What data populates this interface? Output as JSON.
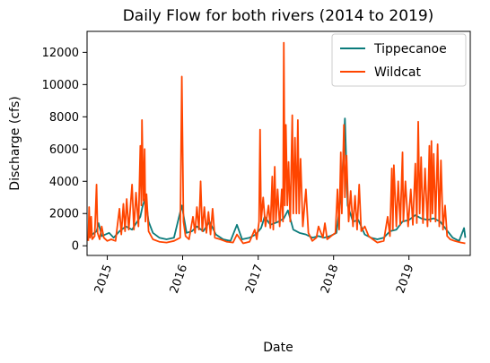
{
  "chart_data": {
    "type": "line",
    "title": "Daily Flow for both rivers (2014 to 2019)",
    "xlabel": "Date",
    "ylabel": "Discharge (cfs)",
    "xlim": [
      "2014-09-25",
      "2019-10-25"
    ],
    "ylim": [
      -600,
      13300
    ],
    "x_ticks": [
      "2015",
      "2016",
      "2017",
      "2018",
      "2019"
    ],
    "y_ticks": [
      0,
      2000,
      4000,
      6000,
      8000,
      10000,
      12000
    ],
    "grid": false,
    "legend": "top-right",
    "series": [
      {
        "name": "Tippecanoe",
        "color": "#0b7b7b",
        "points": [
          [
            "2014-10-01",
            500
          ],
          [
            "2014-10-20",
            700
          ],
          [
            "2014-11-10",
            900
          ],
          [
            "2014-11-20",
            1400
          ],
          [
            "2014-12-05",
            600
          ],
          [
            "2015-01-10",
            800
          ],
          [
            "2015-02-01",
            500
          ],
          [
            "2015-03-01",
            900
          ],
          [
            "2015-04-01",
            1200
          ],
          [
            "2015-05-01",
            1000
          ],
          [
            "2015-06-10",
            1800
          ],
          [
            "2015-06-20",
            2400
          ],
          [
            "2015-07-05",
            3000
          ],
          [
            "2015-07-20",
            1500
          ],
          [
            "2015-08-10",
            800
          ],
          [
            "2015-09-10",
            500
          ],
          [
            "2015-10-15",
            400
          ],
          [
            "2015-11-20",
            500
          ],
          [
            "2015-12-28",
            2500
          ],
          [
            "2016-01-20",
            800
          ],
          [
            "2016-02-15",
            900
          ],
          [
            "2016-03-10",
            1200
          ],
          [
            "2016-04-10",
            900
          ],
          [
            "2016-05-10",
            1500
          ],
          [
            "2016-06-10",
            700
          ],
          [
            "2016-07-15",
            400
          ],
          [
            "2016-08-20",
            300
          ],
          [
            "2016-09-20",
            1300
          ],
          [
            "2016-10-15",
            400
          ],
          [
            "2016-11-20",
            500
          ],
          [
            "2016-12-20",
            700
          ],
          [
            "2017-01-15",
            1100
          ],
          [
            "2017-02-01",
            1800
          ],
          [
            "2017-03-01",
            1300
          ],
          [
            "2017-04-10",
            1500
          ],
          [
            "2017-05-05",
            1700
          ],
          [
            "2017-05-25",
            2200
          ],
          [
            "2017-06-20",
            1000
          ],
          [
            "2017-07-20",
            800
          ],
          [
            "2017-08-20",
            700
          ],
          [
            "2017-09-20",
            500
          ],
          [
            "2017-10-20",
            600
          ],
          [
            "2017-11-15",
            500
          ],
          [
            "2017-12-15",
            600
          ],
          [
            "2018-01-15",
            800
          ],
          [
            "2018-02-10",
            3500
          ],
          [
            "2018-02-25",
            7900
          ],
          [
            "2018-03-10",
            2500
          ],
          [
            "2018-04-05",
            1500
          ],
          [
            "2018-05-01",
            1600
          ],
          [
            "2018-06-01",
            700
          ],
          [
            "2018-07-01",
            500
          ],
          [
            "2018-08-01",
            400
          ],
          [
            "2018-09-01",
            500
          ],
          [
            "2018-10-01",
            900
          ],
          [
            "2018-11-01",
            1000
          ],
          [
            "2018-12-01",
            1500
          ],
          [
            "2019-01-01",
            1600
          ],
          [
            "2019-02-01",
            1900
          ],
          [
            "2019-03-01",
            1700
          ],
          [
            "2019-04-01",
            1600
          ],
          [
            "2019-05-01",
            1700
          ],
          [
            "2019-06-01",
            1500
          ],
          [
            "2019-07-01",
            1000
          ],
          [
            "2019-08-01",
            500
          ],
          [
            "2019-09-01",
            300
          ],
          [
            "2019-09-25",
            1100
          ],
          [
            "2019-10-01",
            500
          ]
        ]
      },
      {
        "name": "Wildcat",
        "color": "#ff4500",
        "points": [
          [
            "2014-10-01",
            300
          ],
          [
            "2014-10-05",
            2400
          ],
          [
            "2014-10-10",
            500
          ],
          [
            "2014-10-15",
            1800
          ],
          [
            "2014-10-20",
            400
          ],
          [
            "2014-11-01",
            600
          ],
          [
            "2014-11-10",
            3800
          ],
          [
            "2014-11-15",
            800
          ],
          [
            "2014-11-25",
            400
          ],
          [
            "2014-12-05",
            1200
          ],
          [
            "2014-12-15",
            500
          ],
          [
            "2015-01-01",
            300
          ],
          [
            "2015-01-20",
            400
          ],
          [
            "2015-02-10",
            300
          ],
          [
            "2015-03-01",
            2300
          ],
          [
            "2015-03-10",
            700
          ],
          [
            "2015-03-20",
            2600
          ],
          [
            "2015-03-28",
            900
          ],
          [
            "2015-04-05",
            2900
          ],
          [
            "2015-04-15",
            1000
          ],
          [
            "2015-05-01",
            3800
          ],
          [
            "2015-05-10",
            1000
          ],
          [
            "2015-05-20",
            3300
          ],
          [
            "2015-06-01",
            1200
          ],
          [
            "2015-06-10",
            6200
          ],
          [
            "2015-06-15",
            2500
          ],
          [
            "2015-06-18",
            7800
          ],
          [
            "2015-06-25",
            2800
          ],
          [
            "2015-07-01",
            6000
          ],
          [
            "2015-07-05",
            1500
          ],
          [
            "2015-07-10",
            3200
          ],
          [
            "2015-07-20",
            900
          ],
          [
            "2015-08-10",
            400
          ],
          [
            "2015-09-10",
            250
          ],
          [
            "2015-10-15",
            200
          ],
          [
            "2015-11-20",
            300
          ],
          [
            "2015-12-20",
            500
          ],
          [
            "2015-12-28",
            10500
          ],
          [
            "2016-01-05",
            1500
          ],
          [
            "2016-01-15",
            600
          ],
          [
            "2016-02-01",
            400
          ],
          [
            "2016-02-20",
            1800
          ],
          [
            "2016-03-01",
            800
          ],
          [
            "2016-03-10",
            2400
          ],
          [
            "2016-03-20",
            1000
          ],
          [
            "2016-03-28",
            4000
          ],
          [
            "2016-04-05",
            900
          ],
          [
            "2016-04-15",
            2400
          ],
          [
            "2016-04-25",
            800
          ],
          [
            "2016-05-05",
            2100
          ],
          [
            "2016-05-15",
            700
          ],
          [
            "2016-05-25",
            2300
          ],
          [
            "2016-06-05",
            500
          ],
          [
            "2016-07-01",
            400
          ],
          [
            "2016-08-01",
            250
          ],
          [
            "2016-09-01",
            200
          ],
          [
            "2016-09-20",
            700
          ],
          [
            "2016-10-20",
            150
          ],
          [
            "2016-11-20",
            250
          ],
          [
            "2016-12-15",
            1000
          ],
          [
            "2016-12-25",
            400
          ],
          [
            "2017-01-05",
            1500
          ],
          [
            "2017-01-10",
            7200
          ],
          [
            "2017-01-15",
            1500
          ],
          [
            "2017-01-25",
            3000
          ],
          [
            "2017-02-05",
            1200
          ],
          [
            "2017-02-20",
            2500
          ],
          [
            "2017-03-01",
            1100
          ],
          [
            "2017-03-10",
            4300
          ],
          [
            "2017-03-15",
            1000
          ],
          [
            "2017-03-22",
            4900
          ],
          [
            "2017-03-28",
            1500
          ],
          [
            "2017-04-05",
            3500
          ],
          [
            "2017-04-15",
            1200
          ],
          [
            "2017-04-25",
            3500
          ],
          [
            "2017-05-01",
            1500
          ],
          [
            "2017-05-05",
            12600
          ],
          [
            "2017-05-10",
            2500
          ],
          [
            "2017-05-15",
            7500
          ],
          [
            "2017-05-22",
            2500
          ],
          [
            "2017-05-28",
            5200
          ],
          [
            "2017-06-05",
            1500
          ],
          [
            "2017-06-15",
            8100
          ],
          [
            "2017-06-20",
            2000
          ],
          [
            "2017-06-28",
            6700
          ],
          [
            "2017-07-05",
            2000
          ],
          [
            "2017-07-12",
            7800
          ],
          [
            "2017-07-18",
            2000
          ],
          [
            "2017-07-25",
            5400
          ],
          [
            "2017-08-05",
            1200
          ],
          [
            "2017-08-20",
            3500
          ],
          [
            "2017-09-01",
            800
          ],
          [
            "2017-09-20",
            300
          ],
          [
            "2017-10-10",
            500
          ],
          [
            "2017-10-20",
            1200
          ],
          [
            "2017-11-10",
            500
          ],
          [
            "2017-11-20",
            1400
          ],
          [
            "2017-12-01",
            400
          ],
          [
            "2017-12-20",
            600
          ],
          [
            "2018-01-10",
            800
          ],
          [
            "2018-01-20",
            3500
          ],
          [
            "2018-01-28",
            1000
          ],
          [
            "2018-02-05",
            5800
          ],
          [
            "2018-02-10",
            2000
          ],
          [
            "2018-02-20",
            7500
          ],
          [
            "2018-02-25",
            3000
          ],
          [
            "2018-03-05",
            5600
          ],
          [
            "2018-03-15",
            1500
          ],
          [
            "2018-03-25",
            3400
          ],
          [
            "2018-04-05",
            1200
          ],
          [
            "2018-04-15",
            3100
          ],
          [
            "2018-04-25",
            1000
          ],
          [
            "2018-05-05",
            3800
          ],
          [
            "2018-05-15",
            900
          ],
          [
            "2018-06-01",
            1200
          ],
          [
            "2018-06-20",
            600
          ],
          [
            "2018-07-10",
            400
          ],
          [
            "2018-08-01",
            200
          ],
          [
            "2018-09-01",
            300
          ],
          [
            "2018-09-20",
            1800
          ],
          [
            "2018-10-01",
            600
          ],
          [
            "2018-10-10",
            4800
          ],
          [
            "2018-10-15",
            1000
          ],
          [
            "2018-10-20",
            5000
          ],
          [
            "2018-11-01",
            1200
          ],
          [
            "2018-11-10",
            4000
          ],
          [
            "2018-11-20",
            1300
          ],
          [
            "2018-12-01",
            5800
          ],
          [
            "2018-12-05",
            1500
          ],
          [
            "2018-12-15",
            4000
          ],
          [
            "2018-12-28",
            1200
          ],
          [
            "2019-01-10",
            3500
          ],
          [
            "2019-01-20",
            1300
          ],
          [
            "2019-02-01",
            5100
          ],
          [
            "2019-02-08",
            1400
          ],
          [
            "2019-02-15",
            7700
          ],
          [
            "2019-02-22",
            2000
          ],
          [
            "2019-03-01",
            5500
          ],
          [
            "2019-03-10",
            1400
          ],
          [
            "2019-03-20",
            4800
          ],
          [
            "2019-04-01",
            1200
          ],
          [
            "2019-04-10",
            6200
          ],
          [
            "2019-04-15",
            1500
          ],
          [
            "2019-04-20",
            6500
          ],
          [
            "2019-04-25",
            2000
          ],
          [
            "2019-05-01",
            5700
          ],
          [
            "2019-05-10",
            1500
          ],
          [
            "2019-05-20",
            6300
          ],
          [
            "2019-05-28",
            1200
          ],
          [
            "2019-06-05",
            5300
          ],
          [
            "2019-06-15",
            1000
          ],
          [
            "2019-06-25",
            2500
          ],
          [
            "2019-07-05",
            600
          ],
          [
            "2019-07-20",
            400
          ],
          [
            "2019-08-10",
            300
          ],
          [
            "2019-09-10",
            200
          ],
          [
            "2019-10-01",
            150
          ]
        ]
      }
    ]
  }
}
